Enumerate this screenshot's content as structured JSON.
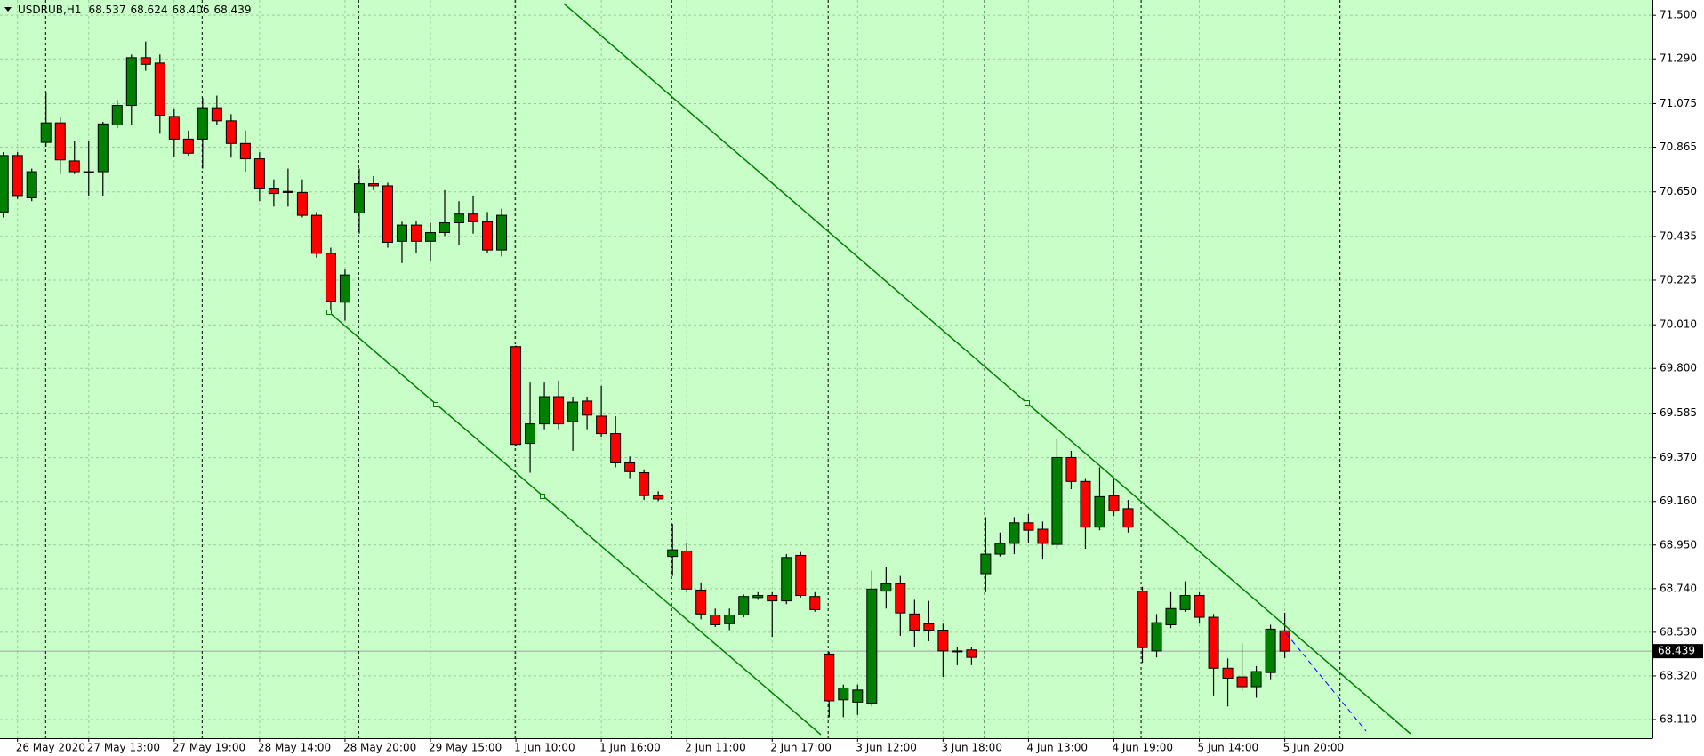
{
  "chart_data": {
    "type": "candlestick",
    "symbol": "USDRUB,H1",
    "categories": [
      null,
      "26 May 2020",
      null,
      null,
      null,
      null,
      "27 May 13:00",
      null,
      null,
      null,
      null,
      null,
      "27 May 19:00",
      null,
      null,
      null,
      null,
      null,
      "28 May 14:00",
      null,
      null,
      null,
      null,
      null,
      "28 May 20:00",
      null,
      null,
      null,
      null,
      null,
      "29 May 15:00",
      null,
      null,
      null,
      null,
      null,
      "1 Jun 10:00",
      null,
      null,
      null,
      null,
      null,
      "1 Jun 16:00",
      null,
      null,
      null,
      null,
      null,
      "2 Jun 11:00",
      null,
      null,
      null,
      null,
      null,
      "2 Jun 17:00",
      null,
      null,
      null,
      null,
      null,
      "3 Jun 12:00",
      null,
      null,
      null,
      null,
      null,
      "3 Jun 18:00",
      null,
      null,
      null,
      null,
      null,
      "4 Jun 13:00",
      null,
      null,
      null,
      null,
      null,
      "4 Jun 19:00",
      null,
      null,
      null,
      null,
      null,
      "5 Jun 14:00",
      null,
      null,
      null,
      null,
      null,
      "5 Jun 20:00"
    ],
    "open": [
      70.553,
      70.825,
      70.621,
      70.888,
      70.982,
      70.799,
      70.747,
      70.747,
      70.972,
      71.066,
      71.296,
      71.27,
      71.013,
      70.904,
      70.904,
      71.055,
      70.992,
      70.883,
      70.809,
      70.668,
      70.652,
      70.647,
      70.537,
      70.354,
      70.119,
      70.548,
      70.689,
      70.679,
      70.412,
      70.49,
      70.412,
      70.454,
      70.501,
      70.543,
      70.506,
      70.37,
      69.905,
      69.439,
      69.533,
      69.664,
      69.544,
      69.643,
      69.57,
      69.486,
      69.345,
      69.298,
      69.188,
      68.895,
      68.921,
      68.733,
      68.613,
      68.571,
      68.613,
      68.697,
      68.707,
      68.681,
      68.9,
      68.702,
      68.425,
      68.205,
      68.194,
      68.189,
      68.728,
      68.764,
      68.618,
      68.571,
      68.54,
      68.44,
      68.445,
      68.812,
      68.906,
      68.958,
      69.057,
      69.026,
      68.953,
      69.371,
      69.256,
      69.036,
      69.188,
      69.125,
      68.728,
      68.44,
      68.566,
      68.639,
      68.707,
      68.602,
      68.357,
      68.315,
      68.268,
      68.336,
      68.537
    ],
    "high": [
      70.841,
      70.841,
      70.762,
      71.128,
      71.008,
      70.893,
      70.893,
      70.987,
      71.092,
      71.311,
      71.374,
      71.311,
      71.05,
      70.945,
      71.102,
      71.113,
      71.024,
      70.945,
      70.841,
      70.71,
      70.762,
      70.71,
      70.553,
      70.381,
      70.276,
      70.762,
      70.726,
      70.694,
      70.506,
      70.511,
      70.501,
      70.658,
      70.605,
      70.632,
      70.553,
      70.569,
      69.91,
      69.732,
      69.732,
      69.742,
      69.664,
      69.664,
      69.716,
      69.57,
      69.376,
      69.314,
      69.209,
      69.052,
      68.958,
      68.77,
      68.644,
      68.644,
      68.712,
      68.723,
      68.723,
      68.906,
      68.916,
      68.723,
      68.435,
      68.278,
      68.278,
      68.827,
      68.843,
      68.801,
      68.686,
      68.681,
      68.571,
      68.461,
      68.461,
      69.084,
      69.01,
      69.084,
      69.099,
      69.063,
      69.46,
      69.403,
      69.272,
      69.324,
      69.272,
      69.167,
      68.749,
      68.618,
      68.723,
      68.775,
      68.723,
      68.618,
      68.404,
      68.477,
      68.367,
      68.566,
      68.624
    ],
    "low": [
      70.527,
      70.616,
      70.605,
      70.867,
      70.736,
      70.736,
      70.632,
      70.632,
      70.956,
      70.972,
      71.233,
      70.93,
      70.82,
      70.825,
      70.762,
      70.972,
      70.815,
      70.747,
      70.605,
      70.579,
      70.579,
      70.527,
      70.333,
      70.067,
      70.03,
      70.449,
      70.658,
      70.381,
      70.307,
      70.354,
      70.318,
      70.438,
      70.396,
      70.449,
      70.354,
      70.339,
      69.429,
      69.298,
      69.507,
      69.507,
      69.403,
      69.507,
      69.471,
      69.324,
      69.272,
      69.167,
      69.162,
      68.801,
      68.723,
      68.592,
      68.555,
      68.54,
      68.602,
      68.686,
      68.508,
      68.665,
      68.697,
      68.629,
      68.121,
      68.121,
      68.132,
      68.173,
      68.644,
      68.513,
      68.461,
      68.487,
      68.315,
      68.372,
      68.372,
      68.723,
      68.895,
      68.906,
      68.958,
      68.88,
      68.932,
      69.219,
      68.932,
      69.021,
      69.089,
      69.01,
      68.383,
      68.409,
      68.55,
      68.629,
      68.571,
      68.226,
      68.173,
      68.247,
      68.215,
      68.304,
      68.406
    ],
    "close": [
      70.825,
      70.632,
      70.747,
      70.982,
      70.804,
      70.747,
      70.747,
      70.977,
      71.066,
      71.296,
      71.264,
      71.019,
      70.904,
      70.836,
      71.055,
      70.992,
      70.883,
      70.809,
      70.668,
      70.642,
      70.647,
      70.537,
      70.354,
      70.124,
      70.25,
      70.689,
      70.679,
      70.407,
      70.49,
      70.412,
      70.454,
      70.501,
      70.543,
      70.506,
      70.37,
      70.537,
      69.434,
      69.533,
      69.664,
      69.533,
      69.638,
      69.575,
      69.486,
      69.345,
      69.303,
      69.188,
      69.172,
      68.927,
      68.738,
      68.618,
      68.566,
      68.613,
      68.702,
      68.707,
      68.681,
      68.89,
      68.707,
      68.639,
      68.2,
      68.262,
      68.252,
      68.738,
      68.764,
      68.623,
      68.54,
      68.54,
      68.44,
      68.44,
      68.409,
      68.906,
      68.958,
      69.057,
      69.021,
      68.958,
      69.371,
      69.256,
      69.036,
      69.183,
      69.115,
      69.036,
      68.456,
      68.576,
      68.644,
      68.707,
      68.602,
      68.357,
      68.309,
      68.268,
      68.341,
      68.545,
      68.439
    ],
    "up_color": "#008000",
    "down_color": "#ff0000",
    "background": "#c8ffc8",
    "ylim": [
      68.02,
      71.565
    ],
    "yticks": [
      {
        "value": 71.5,
        "label": "71.500"
      },
      {
        "value": 71.29,
        "label": "71.290"
      },
      71.075,
      70.865,
      {
        "value": 70.65,
        "label": "70.650"
      },
      70.435,
      70.225,
      {
        "value": 70.01,
        "label": "70.010"
      },
      {
        "value": 69.8,
        "label": "69.800"
      },
      69.585,
      {
        "value": 69.37,
        "label": "69.370"
      },
      {
        "value": 69.16,
        "label": "69.160"
      },
      {
        "value": 68.95,
        "label": "68.950"
      },
      {
        "value": 68.74,
        "label": "68.740"
      },
      {
        "value": 68.53,
        "label": "68.530"
      },
      {
        "value": 68.32,
        "label": "68.320"
      },
      {
        "value": 68.11,
        "label": "68.110"
      }
    ],
    "grid": true
  }
}
